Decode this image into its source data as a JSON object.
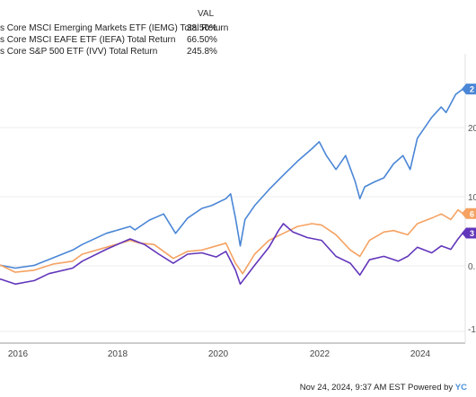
{
  "legend": {
    "value_header": "VAL",
    "entries": [
      {
        "label": "s Core MSCI Emerging Markets ETF (IEMG) Total Return",
        "value": "38.50%"
      },
      {
        "label": "s Core MSCI EAFE ETF (IEFA) Total Return",
        "value": "66.50%"
      },
      {
        "label": "s Core S&P 500 ETF (IVV) Total Return",
        "value": "245.8%"
      }
    ]
  },
  "footer": {
    "timestamp": "Nov 24, 2024, 9:37 AM EST",
    "powered_by": "Powered by",
    "brand": "YC"
  },
  "chart_data": {
    "type": "line",
    "x_ticks": [
      "2016",
      "2018",
      "2020",
      "2022",
      "2024"
    ],
    "y_tick_labels": [
      "20",
      "10",
      "0.",
      "-1"
    ],
    "x_range": [
      2015.0,
      2025.0
    ],
    "y_range": [
      -120,
      290
    ],
    "grid": "horizontal",
    "legend_position": "top-left",
    "series": [
      {
        "key": "ivv",
        "color": "#4a86d6",
        "end_marker": "2",
        "points": [
          [
            2015.0,
            -5
          ],
          [
            2015.3,
            -8
          ],
          [
            2015.6,
            -12
          ],
          [
            2016.0,
            -8
          ],
          [
            2016.4,
            3
          ],
          [
            2016.8,
            14
          ],
          [
            2017.0,
            22
          ],
          [
            2017.5,
            38
          ],
          [
            2018.0,
            48
          ],
          [
            2018.1,
            43
          ],
          [
            2018.4,
            57
          ],
          [
            2018.7,
            66
          ],
          [
            2018.95,
            38
          ],
          [
            2019.2,
            60
          ],
          [
            2019.5,
            74
          ],
          [
            2019.7,
            78
          ],
          [
            2020.0,
            88
          ],
          [
            2020.1,
            95
          ],
          [
            2020.2,
            60
          ],
          [
            2020.3,
            20
          ],
          [
            2020.4,
            58
          ],
          [
            2020.6,
            78
          ],
          [
            2020.9,
            101
          ],
          [
            2021.2,
            122
          ],
          [
            2021.5,
            142
          ],
          [
            2021.8,
            160
          ],
          [
            2021.95,
            170
          ],
          [
            2022.1,
            150
          ],
          [
            2022.3,
            130
          ],
          [
            2022.5,
            150
          ],
          [
            2022.7,
            113
          ],
          [
            2022.8,
            88
          ],
          [
            2022.9,
            105
          ],
          [
            2023.1,
            112
          ],
          [
            2023.3,
            118
          ],
          [
            2023.5,
            138
          ],
          [
            2023.7,
            150
          ],
          [
            2023.85,
            130
          ],
          [
            2024.0,
            175
          ],
          [
            2024.3,
            205
          ],
          [
            2024.5,
            220
          ],
          [
            2024.6,
            212
          ],
          [
            2024.8,
            238
          ],
          [
            2024.95,
            245.8
          ]
        ]
      },
      {
        "key": "iefa",
        "color": "#f5a262",
        "end_marker": "6",
        "points": [
          [
            2015.0,
            -10
          ],
          [
            2015.3,
            -8
          ],
          [
            2015.6,
            -18
          ],
          [
            2016.0,
            -15
          ],
          [
            2016.4,
            -6
          ],
          [
            2016.8,
            -2
          ],
          [
            2017.0,
            8
          ],
          [
            2017.5,
            18
          ],
          [
            2018.0,
            28
          ],
          [
            2018.2,
            24
          ],
          [
            2018.5,
            22
          ],
          [
            2018.9,
            2
          ],
          [
            2019.2,
            12
          ],
          [
            2019.5,
            14
          ],
          [
            2019.8,
            20
          ],
          [
            2020.0,
            24
          ],
          [
            2020.2,
            -5
          ],
          [
            2020.35,
            -20
          ],
          [
            2020.6,
            8
          ],
          [
            2020.9,
            28
          ],
          [
            2021.2,
            38
          ],
          [
            2021.5,
            48
          ],
          [
            2021.8,
            52
          ],
          [
            2022.0,
            50
          ],
          [
            2022.3,
            36
          ],
          [
            2022.6,
            14
          ],
          [
            2022.8,
            5
          ],
          [
            2023.0,
            28
          ],
          [
            2023.3,
            40
          ],
          [
            2023.5,
            42
          ],
          [
            2023.8,
            36
          ],
          [
            2024.0,
            52
          ],
          [
            2024.3,
            60
          ],
          [
            2024.5,
            66
          ],
          [
            2024.7,
            58
          ],
          [
            2024.85,
            72
          ],
          [
            2024.95,
            66.5
          ]
        ]
      },
      {
        "key": "iemg",
        "color": "#6236bb",
        "end_marker": "3",
        "points": [
          [
            2015.0,
            -25
          ],
          [
            2015.3,
            -28
          ],
          [
            2015.6,
            -35
          ],
          [
            2016.0,
            -30
          ],
          [
            2016.3,
            -20
          ],
          [
            2016.8,
            -12
          ],
          [
            2017.0,
            -2
          ],
          [
            2017.5,
            15
          ],
          [
            2018.0,
            30
          ],
          [
            2018.3,
            22
          ],
          [
            2018.6,
            8
          ],
          [
            2018.9,
            -5
          ],
          [
            2019.2,
            8
          ],
          [
            2019.5,
            10
          ],
          [
            2019.8,
            4
          ],
          [
            2020.0,
            12
          ],
          [
            2020.2,
            -15
          ],
          [
            2020.3,
            -35
          ],
          [
            2020.6,
            -8
          ],
          [
            2020.9,
            18
          ],
          [
            2021.1,
            42
          ],
          [
            2021.2,
            52
          ],
          [
            2021.4,
            40
          ],
          [
            2021.7,
            32
          ],
          [
            2022.0,
            28
          ],
          [
            2022.3,
            5
          ],
          [
            2022.6,
            -5
          ],
          [
            2022.8,
            -22
          ],
          [
            2023.0,
            0
          ],
          [
            2023.3,
            5
          ],
          [
            2023.6,
            -2
          ],
          [
            2023.8,
            5
          ],
          [
            2024.0,
            18
          ],
          [
            2024.3,
            10
          ],
          [
            2024.5,
            20
          ],
          [
            2024.7,
            15
          ],
          [
            2024.85,
            30
          ],
          [
            2024.95,
            38.5
          ]
        ]
      }
    ]
  }
}
